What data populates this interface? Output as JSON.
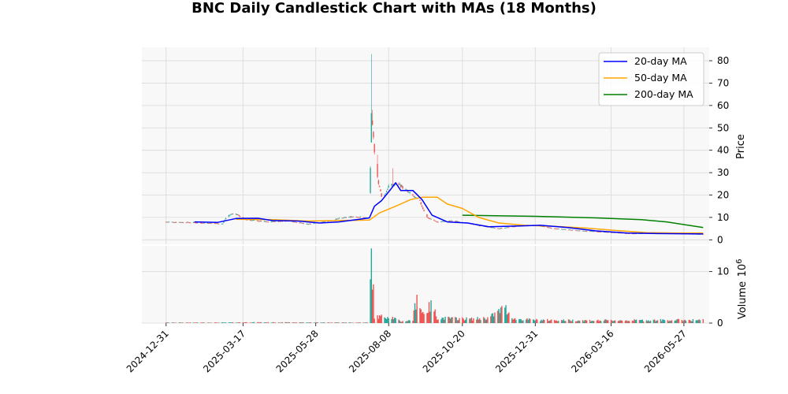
{
  "chart_data": {
    "type": "candlestick",
    "title": "BNC Daily Candlestick Chart with MAs (18 Months)",
    "price_axis": {
      "label": "Price",
      "ylim": [
        -2,
        86
      ],
      "ticks": [
        0,
        10,
        20,
        30,
        40,
        50,
        60,
        70,
        80
      ]
    },
    "volume_axis": {
      "label": "Volume",
      "exponent_label": "10",
      "exponent": "6",
      "ylim": [
        0,
        15
      ],
      "ticks": [
        0,
        10
      ],
      "tick_labels": [
        "0",
        "10"
      ]
    },
    "x_axis": {
      "ticks": [
        "2024-12-31",
        "2025-03-17",
        "2025-05-28",
        "2025-08-08",
        "2025-10-20",
        "2025-12-31",
        "2026-03-16",
        "2026-05-27"
      ],
      "range": [
        "2024-12-07",
        "2026-06-21"
      ]
    },
    "grid": true,
    "legend_position": "upper right",
    "legend": [
      {
        "label": "20-day MA",
        "color": "#0000ff"
      },
      {
        "label": "50-day MA",
        "color": "#ffa500"
      },
      {
        "label": "200-day MA",
        "color": "#008000"
      }
    ],
    "colors": {
      "up": "#26a69a",
      "down": "#ef5350",
      "background": "#f8f8f8",
      "grid": "#d8d8d8"
    },
    "price_control_points": [
      [
        "2024-12-31",
        8.0
      ],
      [
        "2025-01-20",
        7.8
      ],
      [
        "2025-02-10",
        7.5
      ],
      [
        "2025-02-25",
        7.2
      ],
      [
        "2025-03-01",
        10.5
      ],
      [
        "2025-03-08",
        12.0
      ],
      [
        "2025-03-20",
        9.0
      ],
      [
        "2025-04-10",
        8.0
      ],
      [
        "2025-05-01",
        8.5
      ],
      [
        "2025-05-20",
        7.0
      ],
      [
        "2025-06-10",
        8.5
      ],
      [
        "2025-06-20",
        9.5
      ],
      [
        "2025-07-05",
        10.5
      ],
      [
        "2025-07-20",
        9.5
      ],
      [
        "2025-07-22",
        55.0
      ],
      [
        "2025-07-25",
        40.0
      ],
      [
        "2025-07-29",
        25.0
      ],
      [
        "2025-08-02",
        18.0
      ],
      [
        "2025-08-08",
        24.0
      ],
      [
        "2025-08-18",
        25.0
      ],
      [
        "2025-08-28",
        21.0
      ],
      [
        "2025-09-08",
        17.0
      ],
      [
        "2025-09-15",
        10.0
      ],
      [
        "2025-09-25",
        8.0
      ],
      [
        "2025-10-10",
        8.5
      ],
      [
        "2025-10-25",
        7.5
      ],
      [
        "2025-11-10",
        6.0
      ],
      [
        "2025-11-25",
        5.0
      ],
      [
        "2025-12-10",
        6.0
      ],
      [
        "2025-12-31",
        6.5
      ],
      [
        "2026-01-20",
        5.0
      ],
      [
        "2026-02-15",
        4.0
      ],
      [
        "2026-03-10",
        3.5
      ],
      [
        "2026-04-05",
        2.8
      ],
      [
        "2026-05-01",
        3.0
      ],
      [
        "2026-05-20",
        2.8
      ],
      [
        "2026-06-15",
        2.5
      ]
    ],
    "ma20": [
      [
        "2025-01-28",
        8.0
      ],
      [
        "2025-02-20",
        7.8
      ],
      [
        "2025-03-10",
        9.5
      ],
      [
        "2025-04-01",
        9.6
      ],
      [
        "2025-04-15",
        8.6
      ],
      [
        "2025-05-10",
        8.4
      ],
      [
        "2025-06-01",
        7.5
      ],
      [
        "2025-06-20",
        8.0
      ],
      [
        "2025-07-10",
        9.2
      ],
      [
        "2025-07-20",
        9.8
      ],
      [
        "2025-07-25",
        15.0
      ],
      [
        "2025-08-01",
        17.5
      ],
      [
        "2025-08-10",
        22.5
      ],
      [
        "2025-08-15",
        25.5
      ],
      [
        "2025-08-20",
        22.0
      ],
      [
        "2025-09-01",
        22.0
      ],
      [
        "2025-09-10",
        18.0
      ],
      [
        "2025-09-20",
        11.0
      ],
      [
        "2025-10-05",
        8.0
      ],
      [
        "2025-10-25",
        7.5
      ],
      [
        "2025-11-15",
        5.8
      ],
      [
        "2025-12-15",
        6.2
      ],
      [
        "2026-01-05",
        6.5
      ],
      [
        "2026-02-01",
        5.5
      ],
      [
        "2026-03-01",
        4.0
      ],
      [
        "2026-04-01",
        3.0
      ],
      [
        "2026-05-01",
        2.8
      ],
      [
        "2026-06-15",
        2.6
      ]
    ],
    "ma50": [
      [
        "2025-03-10",
        9.2
      ],
      [
        "2025-04-15",
        9.0
      ],
      [
        "2025-05-20",
        8.4
      ],
      [
        "2025-06-20",
        8.6
      ],
      [
        "2025-07-20",
        8.8
      ],
      [
        "2025-07-30",
        12.0
      ],
      [
        "2025-08-15",
        15.0
      ],
      [
        "2025-08-30",
        18.0
      ],
      [
        "2025-09-10",
        19.0
      ],
      [
        "2025-09-25",
        19.0
      ],
      [
        "2025-10-05",
        16.0
      ],
      [
        "2025-10-20",
        14.0
      ],
      [
        "2025-11-05",
        10.0
      ],
      [
        "2025-11-25",
        7.5
      ],
      [
        "2025-12-20",
        6.5
      ],
      [
        "2026-01-20",
        6.0
      ],
      [
        "2026-02-20",
        5.2
      ],
      [
        "2026-03-20",
        4.2
      ],
      [
        "2026-04-20",
        3.2
      ],
      [
        "2026-05-20",
        3.0
      ],
      [
        "2026-06-15",
        3.0
      ]
    ],
    "ma200": [
      [
        "2025-10-20",
        11.0
      ],
      [
        "2025-12-31",
        10.5
      ],
      [
        "2026-03-01",
        9.8
      ],
      [
        "2026-04-15",
        9.0
      ],
      [
        "2026-05-10",
        8.0
      ],
      [
        "2026-06-15",
        5.5
      ]
    ],
    "price_spike_highs": [
      [
        "2025-07-22",
        83.0
      ],
      [
        "2025-07-23",
        58.0
      ],
      [
        "2025-07-25",
        42.0
      ],
      [
        "2025-07-28",
        38.0
      ],
      [
        "2025-08-12",
        32.0
      ]
    ],
    "volume_control_points": [
      [
        "2025-01-01",
        0.1
      ],
      [
        "2025-03-01",
        0.1
      ],
      [
        "2025-03-20",
        0.15
      ],
      [
        "2025-07-20",
        0.1
      ],
      [
        "2025-07-22",
        14.5
      ],
      [
        "2025-07-25",
        1.2
      ],
      [
        "2025-08-10",
        1.3
      ],
      [
        "2025-08-20",
        0.3
      ],
      [
        "2025-09-01",
        0.6
      ],
      [
        "2025-09-05",
        5.5
      ],
      [
        "2025-09-10",
        2.0
      ],
      [
        "2025-09-15",
        2.5
      ],
      [
        "2025-09-20",
        3.6
      ],
      [
        "2025-09-25",
        1.0
      ],
      [
        "2025-10-10",
        0.9
      ],
      [
        "2025-10-30",
        0.8
      ],
      [
        "2025-11-15",
        1.0
      ],
      [
        "2025-12-01",
        3.0
      ],
      [
        "2025-12-10",
        0.8
      ],
      [
        "2026-01-01",
        0.6
      ],
      [
        "2026-03-01",
        0.5
      ],
      [
        "2026-06-15",
        0.6
      ]
    ]
  }
}
